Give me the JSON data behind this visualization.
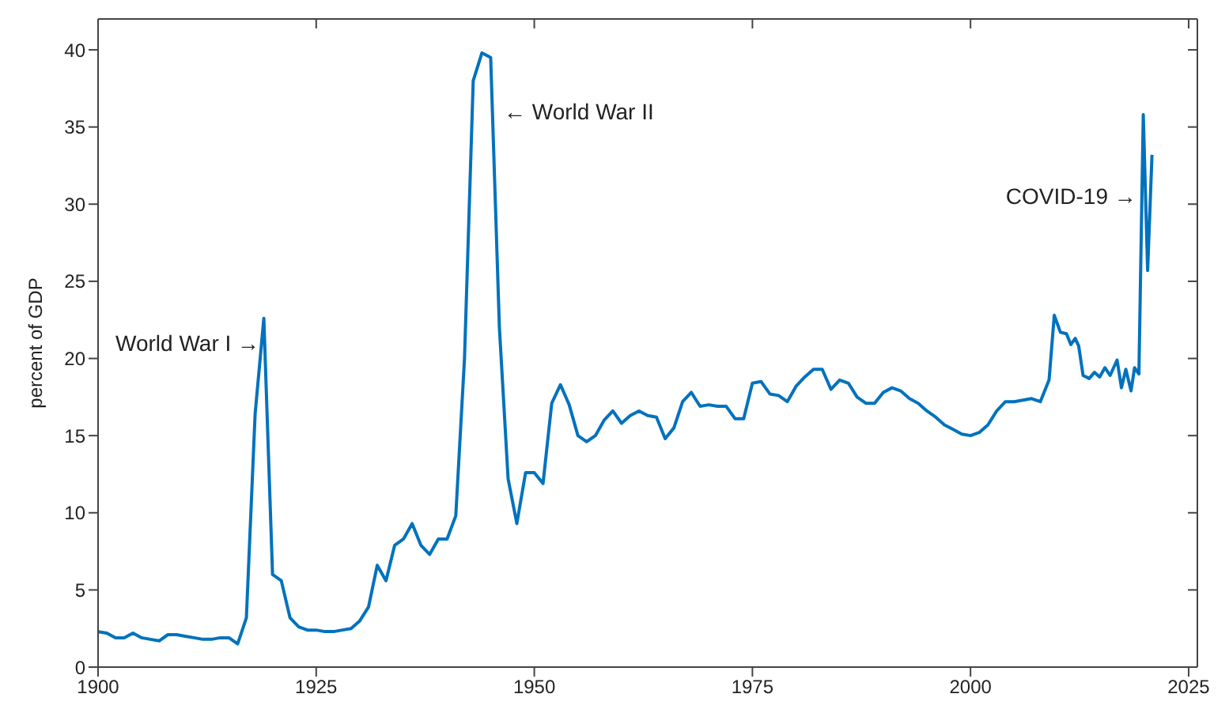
{
  "chart_data": {
    "type": "line",
    "ylabel": "percent of GDP",
    "x": [
      1900,
      1901,
      1902,
      1903,
      1904,
      1905,
      1906,
      1907,
      1908,
      1909,
      1910,
      1911,
      1912,
      1913,
      1914,
      1915,
      1916,
      1917,
      1918,
      1919,
      1920,
      1921,
      1922,
      1923,
      1924,
      1925,
      1926,
      1927,
      1928,
      1929,
      1930,
      1931,
      1932,
      1933,
      1934,
      1935,
      1936,
      1937,
      1938,
      1939,
      1940,
      1941,
      1942,
      1943,
      1944,
      1945,
      1946,
      1947,
      1948,
      1949,
      1950,
      1951,
      1952,
      1953,
      1954,
      1955,
      1956,
      1957,
      1958,
      1959,
      1960,
      1961,
      1962,
      1963,
      1964,
      1965,
      1966,
      1967,
      1968,
      1969,
      1970,
      1971,
      1972,
      1973,
      1974,
      1975,
      1976,
      1977,
      1978,
      1979,
      1980,
      1981,
      1982,
      1983,
      1984,
      1985,
      1986,
      1987,
      1988,
      1989,
      1990,
      1991,
      1992,
      1993,
      1994,
      1995,
      1996,
      1997,
      1998,
      1999,
      2000,
      2001,
      2002,
      2003,
      2004,
      2005,
      2006,
      2007,
      2008,
      2009,
      2009.6,
      2010.3,
      2011,
      2011.5,
      2012,
      2012.4,
      2012.9,
      2013.6,
      2014.2,
      2014.8,
      2015.4,
      2016,
      2016.4,
      2016.8,
      2017.3,
      2017.8,
      2018.4,
      2018.8,
      2019.3,
      2019.8,
      2020.3,
      2020.8
    ],
    "series": [
      {
        "color": "#0072bd",
        "values": [
          2.3,
          2.2,
          1.9,
          1.9,
          2.2,
          1.9,
          1.8,
          1.7,
          2.1,
          2.1,
          2.0,
          1.9,
          1.8,
          1.8,
          1.9,
          1.9,
          1.5,
          3.2,
          16.4,
          22.6,
          6.0,
          5.6,
          3.2,
          2.6,
          2.4,
          2.4,
          2.3,
          2.3,
          2.4,
          2.5,
          3.0,
          3.9,
          6.6,
          5.6,
          7.9,
          8.3,
          9.3,
          7.9,
          7.3,
          8.3,
          8.3,
          9.8,
          20.0,
          38.0,
          39.8,
          39.5,
          22.0,
          12.2,
          9.3,
          12.6,
          12.6,
          11.9,
          17.1,
          18.3,
          17.0,
          15.0,
          14.6,
          15.0,
          16.0,
          16.6,
          15.8,
          16.3,
          16.6,
          16.3,
          16.2,
          14.8,
          15.5,
          17.2,
          17.8,
          16.9,
          17.0,
          16.9,
          16.9,
          16.1,
          16.1,
          18.4,
          18.5,
          17.7,
          17.6,
          17.2,
          18.2,
          18.8,
          19.3,
          19.3,
          18.0,
          18.6,
          18.4,
          17.5,
          17.1,
          17.1,
          17.8,
          18.1,
          17.9,
          17.4,
          17.1,
          16.6,
          16.2,
          15.7,
          15.4,
          15.1,
          15.0,
          15.2,
          15.7,
          16.6,
          17.2,
          17.2,
          17.3,
          17.4,
          17.2,
          18.6,
          22.8,
          21.7,
          21.6,
          20.9,
          21.3,
          20.8,
          18.9,
          18.7,
          19.1,
          18.8,
          19.4,
          18.9,
          19.4,
          19.9,
          18.1,
          19.3,
          17.9,
          19.4,
          19.0,
          35.8,
          25.7,
          33.2
        ]
      }
    ],
    "xlim": [
      1900,
      2026
    ],
    "xticks": [
      1900,
      1925,
      1950,
      1975,
      2000,
      2025
    ],
    "ylim": [
      0,
      42
    ],
    "yticks": [
      0,
      5,
      10,
      15,
      20,
      25,
      30,
      35,
      40
    ],
    "grid": false,
    "legend": false,
    "marker": "none",
    "line_style": "solid",
    "annotations": [
      "World War I →",
      "← World War II",
      "COVID-19 →"
    ]
  }
}
